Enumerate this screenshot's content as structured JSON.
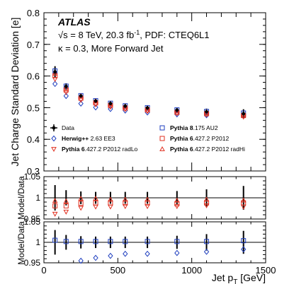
{
  "chart_data": [
    {
      "type": "scatter",
      "panel": "main",
      "ylabel": "Jet Charge Standard Deviation [e]",
      "ylim": [
        0.3,
        0.8
      ],
      "xlim": [
        0,
        1500
      ],
      "yticks": [
        "0.3",
        "0.4",
        "0.5",
        "0.6",
        "0.7",
        "0.8"
      ],
      "annotations": {
        "experiment": "ATLAS",
        "line1": "√s = 8 TeV, 20.3 fb",
        "line1_sup": "-1",
        "line1_rest": ", PDF: CTEQ6L1",
        "line2": "κ = 0.3, More Forward Jet"
      },
      "x": [
        75,
        150,
        250,
        350,
        450,
        550,
        700,
        900,
        1100,
        1350
      ],
      "series": [
        {
          "name": "Data",
          "marker": "filled-circle",
          "color": "#000000",
          "values": [
            0.613,
            0.567,
            0.537,
            0.521,
            0.513,
            0.505,
            0.499,
            0.492,
            0.487,
            0.481
          ],
          "errors": [
            0.018,
            0.01,
            0.008,
            0.007,
            0.007,
            0.007,
            0.007,
            0.008,
            0.01,
            0.014
          ]
        },
        {
          "name": "Pythia 8.175 AU2",
          "marker": "open-square",
          "color": "#1f3fbf",
          "values": [
            0.616,
            0.568,
            0.538,
            0.522,
            0.514,
            0.506,
            0.5,
            0.493,
            0.488,
            0.483
          ]
        },
        {
          "name": "Herwig++ 2.63 EE3",
          "marker": "open-diamond",
          "color": "#1f3fbf",
          "values": [
            0.575,
            0.537,
            0.513,
            0.501,
            0.496,
            0.491,
            0.485,
            0.479,
            0.476,
            0.473
          ]
        },
        {
          "name": "Pythia 6.427.2 P2012",
          "marker": "open-square",
          "color": "#e03020",
          "values": [
            0.601,
            0.556,
            0.53,
            0.515,
            0.507,
            0.499,
            0.493,
            0.485,
            0.481,
            0.475
          ]
        },
        {
          "name": "Pythia 6.427.2 P2012 radLo",
          "marker": "open-triangle-down",
          "color": "#e03020",
          "values": [
            0.59,
            0.548,
            0.524,
            0.51,
            0.502,
            0.495,
            0.489,
            0.482,
            0.478,
            0.471
          ]
        },
        {
          "name": "Pythia 6.427.2 P2012 radHi",
          "marker": "open-triangle-up",
          "color": "#e03020",
          "values": [
            0.608,
            0.562,
            0.536,
            0.52,
            0.511,
            0.503,
            0.497,
            0.489,
            0.485,
            0.478
          ]
        }
      ]
    },
    {
      "type": "scatter",
      "panel": "ratio-pythia6",
      "ylabel": "Model/Data",
      "ylim": [
        0.95,
        1.05
      ],
      "yticks": [
        "0.95",
        "1",
        "1.05"
      ],
      "x": [
        75,
        150,
        250,
        350,
        450,
        550,
        700,
        900,
        1100,
        1350
      ],
      "data_band": [
        0.03,
        0.018,
        0.015,
        0.014,
        0.014,
        0.014,
        0.014,
        0.016,
        0.02,
        0.028
      ],
      "series": [
        {
          "name": "Pythia 6.427.2 P2012",
          "marker": "open-square",
          "color": "#e03020",
          "values": [
            0.981,
            0.981,
            0.987,
            0.988,
            0.988,
            0.988,
            0.988,
            0.986,
            0.988,
            0.988
          ]
        },
        {
          "name": "Pythia 6.427.2 P2012 radLo",
          "marker": "open-triangle-down",
          "color": "#e03020",
          "values": [
            0.962,
            0.967,
            0.976,
            0.979,
            0.979,
            0.98,
            0.98,
            0.98,
            0.982,
            0.979
          ]
        },
        {
          "name": "Pythia 6.427.2 P2012 radHi",
          "marker": "open-triangle-up",
          "color": "#e03020",
          "values": [
            0.993,
            0.992,
            0.998,
            0.998,
            0.996,
            0.996,
            0.996,
            0.994,
            0.996,
            0.994
          ]
        }
      ]
    },
    {
      "type": "scatter",
      "panel": "ratio-pythia8-herwig",
      "ylabel": "Model/Data",
      "ylim": [
        0.95,
        1.05
      ],
      "yticks": [
        "0.95",
        "1",
        "1.05"
      ],
      "xlabel": "Jet p",
      "xlabel_sub": "T",
      "xlabel_unit": " [GeV]",
      "xticks": [
        "0",
        "500",
        "1000",
        "1500"
      ],
      "x": [
        75,
        150,
        250,
        350,
        450,
        550,
        700,
        900,
        1100,
        1350
      ],
      "data_band": [
        0.03,
        0.018,
        0.015,
        0.014,
        0.014,
        0.014,
        0.014,
        0.016,
        0.02,
        0.028
      ],
      "series": [
        {
          "name": "Pythia 8.175 AU2",
          "marker": "open-square",
          "color": "#1f3fbf",
          "values": [
            1.005,
            1.002,
            1.002,
            1.002,
            1.002,
            1.002,
            1.002,
            1.002,
            1.002,
            1.004
          ]
        },
        {
          "name": "Herwig++ 2.63 EE3",
          "marker": "open-diamond",
          "color": "#1f3fbf",
          "values": [
            0.938,
            0.947,
            0.955,
            0.962,
            0.967,
            0.972,
            0.972,
            0.974,
            0.977,
            0.983
          ]
        }
      ]
    }
  ],
  "legend": [
    {
      "label": "Data",
      "marker": "filled-circle",
      "color": "#000000",
      "bold": "",
      "rest": "Data"
    },
    {
      "label": "Pythia 8.175 AU2",
      "marker": "open-square",
      "color": "#1f3fbf",
      "bold": "Pythia 8",
      "rest": ".175 AU2"
    },
    {
      "label": "Herwig++ 2.63 EE3",
      "marker": "open-diamond",
      "color": "#1f3fbf",
      "bold": "Herwig++",
      "rest": " 2.63 EE3"
    },
    {
      "label": "Pythia 6.427.2 P2012",
      "marker": "open-square",
      "color": "#e03020",
      "bold": "Pythia 6",
      "rest": ".427.2 P2012"
    },
    {
      "label": "Pythia 6.427.2 P2012 radLo",
      "marker": "open-triangle-down",
      "color": "#e03020",
      "bold": "Pythia 6",
      "rest": ".427.2 P2012 radLo"
    },
    {
      "label": "Pythia 6.427.2 P2012 radHi",
      "marker": "open-triangle-up",
      "color": "#e03020",
      "bold": "Pythia 6",
      "rest": ".427.2 P2012 radHi"
    }
  ]
}
